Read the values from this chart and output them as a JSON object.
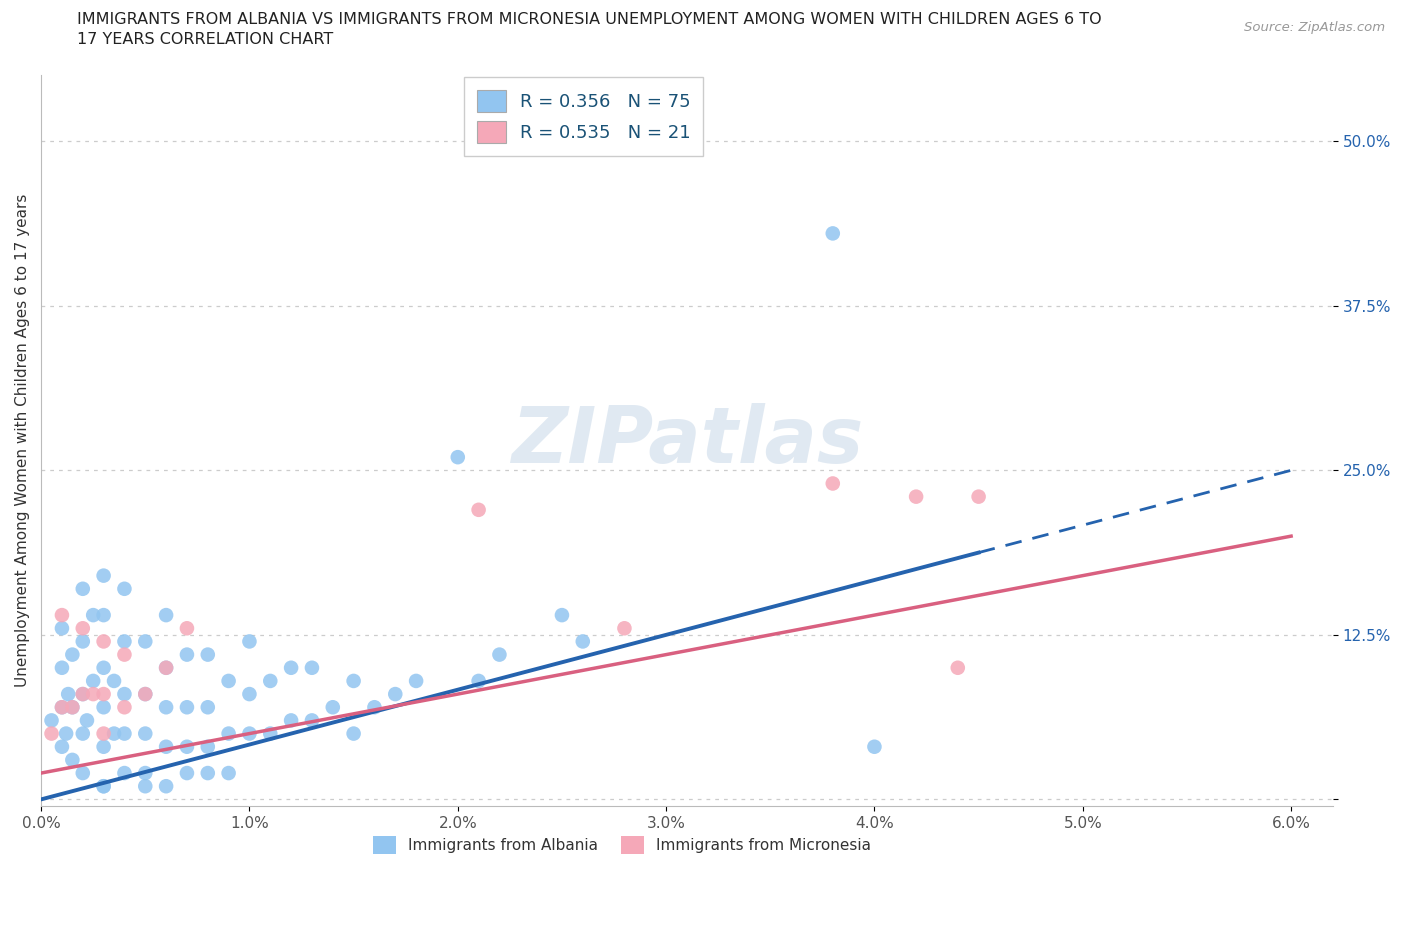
{
  "title_line1": "IMMIGRANTS FROM ALBANIA VS IMMIGRANTS FROM MICRONESIA UNEMPLOYMENT AMONG WOMEN WITH CHILDREN AGES 6 TO",
  "title_line2": "17 YEARS CORRELATION CHART",
  "source": "Source: ZipAtlas.com",
  "ylabel": "Unemployment Among Women with Children Ages 6 to 17 years",
  "legend_albania": "R = 0.356   N = 75",
  "legend_micronesia": "R = 0.535   N = 21",
  "color_albania": "#92c5f0",
  "color_micronesia": "#f5a8b8",
  "line_albania": "#2563ae",
  "line_micronesia": "#d96080",
  "xlim": [
    0.0,
    0.062
  ],
  "ylim": [
    -0.005,
    0.55
  ],
  "xticks": [
    0.0,
    0.01,
    0.02,
    0.03,
    0.04,
    0.05,
    0.06
  ],
  "xticklabels": [
    "0.0%",
    "1.0%",
    "2.0%",
    "3.0%",
    "4.0%",
    "5.0%",
    "6.0%"
  ],
  "yticks": [
    0.0,
    0.125,
    0.25,
    0.375,
    0.5
  ],
  "yticklabels": [
    "",
    "12.5%",
    "25.0%",
    "37.5%",
    "50.0%"
  ],
  "albania_x": [
    0.0005,
    0.001,
    0.001,
    0.001,
    0.001,
    0.0012,
    0.0013,
    0.0015,
    0.0015,
    0.0015,
    0.002,
    0.002,
    0.002,
    0.002,
    0.002,
    0.0022,
    0.0025,
    0.0025,
    0.003,
    0.003,
    0.003,
    0.003,
    0.003,
    0.003,
    0.003,
    0.0035,
    0.0035,
    0.004,
    0.004,
    0.004,
    0.004,
    0.004,
    0.005,
    0.005,
    0.005,
    0.005,
    0.005,
    0.006,
    0.006,
    0.006,
    0.006,
    0.006,
    0.007,
    0.007,
    0.007,
    0.007,
    0.008,
    0.008,
    0.008,
    0.008,
    0.009,
    0.009,
    0.009,
    0.01,
    0.01,
    0.01,
    0.011,
    0.011,
    0.012,
    0.012,
    0.013,
    0.013,
    0.014,
    0.015,
    0.015,
    0.016,
    0.017,
    0.018,
    0.02,
    0.021,
    0.022,
    0.025,
    0.026,
    0.038,
    0.04
  ],
  "albania_y": [
    0.06,
    0.04,
    0.07,
    0.1,
    0.13,
    0.05,
    0.08,
    0.03,
    0.07,
    0.11,
    0.05,
    0.08,
    0.12,
    0.16,
    0.02,
    0.06,
    0.09,
    0.14,
    0.01,
    0.04,
    0.07,
    0.1,
    0.14,
    0.17,
    0.01,
    0.05,
    0.09,
    0.02,
    0.05,
    0.08,
    0.12,
    0.16,
    0.02,
    0.05,
    0.08,
    0.12,
    0.01,
    0.04,
    0.07,
    0.1,
    0.14,
    0.01,
    0.04,
    0.07,
    0.11,
    0.02,
    0.04,
    0.07,
    0.11,
    0.02,
    0.05,
    0.09,
    0.02,
    0.05,
    0.08,
    0.12,
    0.05,
    0.09,
    0.06,
    0.1,
    0.06,
    0.1,
    0.07,
    0.05,
    0.09,
    0.07,
    0.08,
    0.09,
    0.26,
    0.09,
    0.11,
    0.14,
    0.12,
    0.43,
    0.04
  ],
  "micronesia_x": [
    0.0005,
    0.001,
    0.001,
    0.0015,
    0.002,
    0.002,
    0.0025,
    0.003,
    0.003,
    0.003,
    0.004,
    0.004,
    0.005,
    0.006,
    0.007,
    0.021,
    0.028,
    0.038,
    0.042,
    0.044,
    0.045
  ],
  "micronesia_y": [
    0.05,
    0.07,
    0.14,
    0.07,
    0.08,
    0.13,
    0.08,
    0.05,
    0.08,
    0.12,
    0.07,
    0.11,
    0.08,
    0.1,
    0.13,
    0.22,
    0.13,
    0.24,
    0.23,
    0.1,
    0.23
  ],
  "alb_line_x0": 0.0,
  "alb_line_y0": 0.0,
  "alb_line_x1": 0.06,
  "alb_line_y1": 0.25,
  "alb_line_dash_start": 0.045,
  "mic_line_x0": 0.0,
  "mic_line_y0": 0.02,
  "mic_line_x1": 0.06,
  "mic_line_y1": 0.2
}
